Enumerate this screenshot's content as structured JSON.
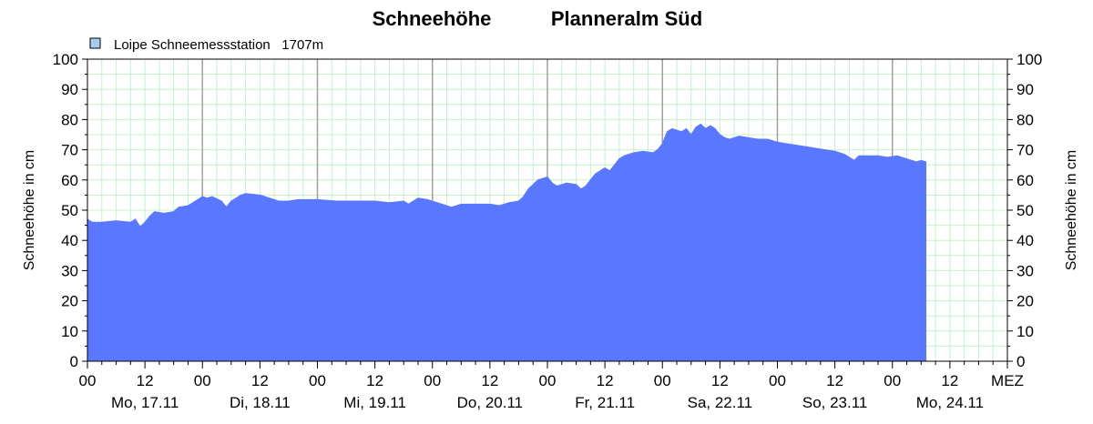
{
  "chart_data": {
    "type": "area",
    "title": "Schneehöhe",
    "subtitle": "Planneralm Süd",
    "ylabel": "Schneehöhe in cm",
    "ylabel_right": "Schneehöhe in cm",
    "ylim": [
      0,
      100
    ],
    "y_ticks": [
      "0",
      "10",
      "20",
      "30",
      "40",
      "50",
      "60",
      "70",
      "80",
      "90",
      "100"
    ],
    "x_unit": "MEZ",
    "x_hour_ticks": [
      "00",
      "12",
      "00",
      "12",
      "00",
      "12",
      "00",
      "12",
      "00",
      "12",
      "00",
      "12",
      "00",
      "12",
      "00",
      "12"
    ],
    "x_day_labels": [
      "Mo, 17.11",
      "Di, 18.11",
      "Mi, 19.11",
      "Do, 20.11",
      "Fr, 21.11",
      "Sa, 22.11",
      "So, 23.11",
      "Mo, 24.11"
    ],
    "x_range_hours": [
      0,
      192
    ],
    "grid": true,
    "legend_position": "top-left",
    "series": [
      {
        "name": "Loipe Schneemessstation   1707m",
        "color": "#5a78ff",
        "points": [
          [
            0,
            47
          ],
          [
            1,
            46
          ],
          [
            3,
            46
          ],
          [
            6,
            46.5
          ],
          [
            9,
            46
          ],
          [
            10,
            47
          ],
          [
            11,
            44.5
          ],
          [
            12,
            46
          ],
          [
            13,
            48
          ],
          [
            14,
            49.5
          ],
          [
            16,
            49
          ],
          [
            18,
            49.5
          ],
          [
            19,
            51
          ],
          [
            21,
            51.5
          ],
          [
            23,
            53.5
          ],
          [
            24,
            54.5
          ],
          [
            25,
            54
          ],
          [
            26,
            54.5
          ],
          [
            28,
            53
          ],
          [
            29,
            51
          ],
          [
            30,
            53
          ],
          [
            32,
            55
          ],
          [
            33,
            55.5
          ],
          [
            36,
            55
          ],
          [
            38,
            54
          ],
          [
            40,
            53
          ],
          [
            42,
            53
          ],
          [
            44,
            53.5
          ],
          [
            48,
            53.5
          ],
          [
            52,
            53
          ],
          [
            56,
            53
          ],
          [
            60,
            53
          ],
          [
            63,
            52.5
          ],
          [
            66,
            53
          ],
          [
            67,
            52
          ],
          [
            69,
            54
          ],
          [
            71,
            53.5
          ],
          [
            72,
            53
          ],
          [
            74,
            52
          ],
          [
            76,
            51
          ],
          [
            78,
            52
          ],
          [
            82,
            52
          ],
          [
            84,
            52
          ],
          [
            86,
            51.5
          ],
          [
            88,
            52.5
          ],
          [
            90,
            53
          ],
          [
            91,
            54.5
          ],
          [
            92,
            57
          ],
          [
            94,
            60
          ],
          [
            96,
            61
          ],
          [
            97,
            59
          ],
          [
            98,
            58
          ],
          [
            100,
            59
          ],
          [
            102,
            58.5
          ],
          [
            103,
            57
          ],
          [
            104,
            58
          ],
          [
            105,
            60
          ],
          [
            106,
            62
          ],
          [
            108,
            64
          ],
          [
            109,
            63
          ],
          [
            110,
            65
          ],
          [
            111,
            67
          ],
          [
            112,
            68
          ],
          [
            114,
            69
          ],
          [
            116,
            69.5
          ],
          [
            118,
            69
          ],
          [
            119,
            70
          ],
          [
            120,
            72
          ],
          [
            121,
            76
          ],
          [
            122,
            77
          ],
          [
            124,
            76
          ],
          [
            125,
            77
          ],
          [
            126,
            75
          ],
          [
            127,
            77.5
          ],
          [
            128,
            78.5
          ],
          [
            129,
            77
          ],
          [
            130,
            78
          ],
          [
            131,
            77
          ],
          [
            132,
            75
          ],
          [
            133,
            74
          ],
          [
            134,
            73.5
          ],
          [
            136,
            74.5
          ],
          [
            138,
            74
          ],
          [
            140,
            73.5
          ],
          [
            142,
            73.5
          ],
          [
            144,
            72.5
          ],
          [
            146,
            72
          ],
          [
            148,
            71.5
          ],
          [
            150,
            71
          ],
          [
            152,
            70.5
          ],
          [
            154,
            70
          ],
          [
            156,
            69.5
          ],
          [
            158,
            68.5
          ],
          [
            159,
            67.5
          ],
          [
            160,
            66.5
          ],
          [
            161,
            68
          ],
          [
            163,
            68
          ],
          [
            165,
            68
          ],
          [
            167,
            67.5
          ],
          [
            169,
            68
          ],
          [
            171,
            67
          ],
          [
            172,
            66.5
          ],
          [
            173,
            66
          ],
          [
            174,
            66.5
          ],
          [
            175,
            66
          ]
        ]
      }
    ]
  }
}
